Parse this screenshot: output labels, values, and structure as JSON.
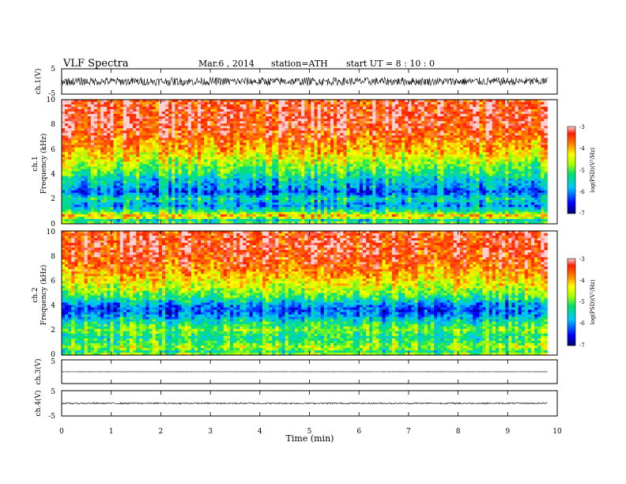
{
  "header": {
    "title": "VLF  Spectra",
    "date": "Mar.6  , 2014",
    "station": "station=ATH",
    "start": "start  UT  =   8 : 10 : 0"
  },
  "chart_data": [
    {
      "type": "line",
      "name": "ch1-waveform",
      "ylabel": "ch.1(V)",
      "ylim": [
        -5,
        5
      ],
      "yticks": [
        "5",
        "-5"
      ],
      "xlim": [
        0,
        10
      ],
      "data_end_min": 9.8,
      "baseline_v": 0,
      "amplitude_v": 1.6,
      "color": "#000000"
    },
    {
      "type": "heatmap",
      "name": "ch1-spectrogram",
      "ylabel_channel": "ch.1",
      "ylabel": "Frequency  (kHz)",
      "ylim": [
        0,
        10
      ],
      "yticks": [
        "0",
        "2",
        "4",
        "6",
        "8",
        "10"
      ],
      "xlim": [
        0,
        10
      ],
      "data_end_min": 9.8,
      "colorbar": {
        "label": "log(PSD)(V²/Hz)",
        "range": [
          -7,
          -3
        ],
        "ticks": [
          "-3",
          "-4",
          "-5",
          "-6",
          "-7"
        ]
      },
      "profile_logpsd": [
        [
          0.0,
          -4.8
        ],
        [
          0.3,
          -5.5
        ],
        [
          0.6,
          -3.9
        ],
        [
          1.0,
          -5.2
        ],
        [
          1.5,
          -6.0
        ],
        [
          2.0,
          -5.4
        ],
        [
          2.6,
          -6.3
        ],
        [
          3.0,
          -5.8
        ],
        [
          3.5,
          -5.6
        ],
        [
          4.0,
          -5.2
        ],
        [
          5.0,
          -4.6
        ],
        [
          6.0,
          -4.0
        ],
        [
          7.0,
          -3.6
        ],
        [
          8.0,
          -3.3
        ],
        [
          9.0,
          -3.3
        ],
        [
          10.0,
          -3.4
        ]
      ]
    },
    {
      "type": "heatmap",
      "name": "ch2-spectrogram",
      "ylabel_channel": "ch.2",
      "ylabel": "Frequency  (kHz)",
      "ylim": [
        0,
        10
      ],
      "yticks": [
        "0",
        "2",
        "4",
        "6",
        "8",
        "10"
      ],
      "xlim": [
        0,
        10
      ],
      "data_end_min": 9.8,
      "colorbar": {
        "label": "log(PSD)(V²/Hz)",
        "range": [
          -7,
          -3
        ],
        "ticks": [
          "-3",
          "-4",
          "-5",
          "-6",
          "-7"
        ]
      },
      "profile_logpsd": [
        [
          0.0,
          -4.5
        ],
        [
          0.3,
          -5.2
        ],
        [
          0.6,
          -4.6
        ],
        [
          1.0,
          -5.0
        ],
        [
          1.5,
          -5.3
        ],
        [
          2.0,
          -4.8
        ],
        [
          2.5,
          -5.2
        ],
        [
          3.0,
          -5.7
        ],
        [
          3.5,
          -6.2
        ],
        [
          4.0,
          -6.0
        ],
        [
          4.5,
          -5.3
        ],
        [
          5.0,
          -4.8
        ],
        [
          6.0,
          -4.2
        ],
        [
          7.0,
          -3.7
        ],
        [
          8.0,
          -3.4
        ],
        [
          9.0,
          -3.3
        ],
        [
          10.0,
          -3.4
        ]
      ]
    },
    {
      "type": "line",
      "name": "ch3-waveform",
      "ylabel": "ch.3(V)",
      "ylim": [
        -5,
        5
      ],
      "yticks": [
        "5"
      ],
      "xlim": [
        0,
        10
      ],
      "data_end_min": 9.8,
      "baseline_v": 0,
      "amplitude_v": 0.05,
      "color": "#000000"
    },
    {
      "type": "line",
      "name": "ch4-waveform",
      "ylabel": "ch.4(V)",
      "ylim": [
        -5,
        5
      ],
      "yticks": [
        "5",
        "-5"
      ],
      "xlim": [
        0,
        10
      ],
      "data_end_min": 9.8,
      "baseline_v": 0,
      "amplitude_v": 0.3,
      "color": "#000000"
    }
  ],
  "time_axis": {
    "label": "Time  (min)",
    "ticks": [
      "0",
      "1",
      "2",
      "3",
      "4",
      "5",
      "6",
      "7",
      "8",
      "9",
      "10"
    ]
  }
}
